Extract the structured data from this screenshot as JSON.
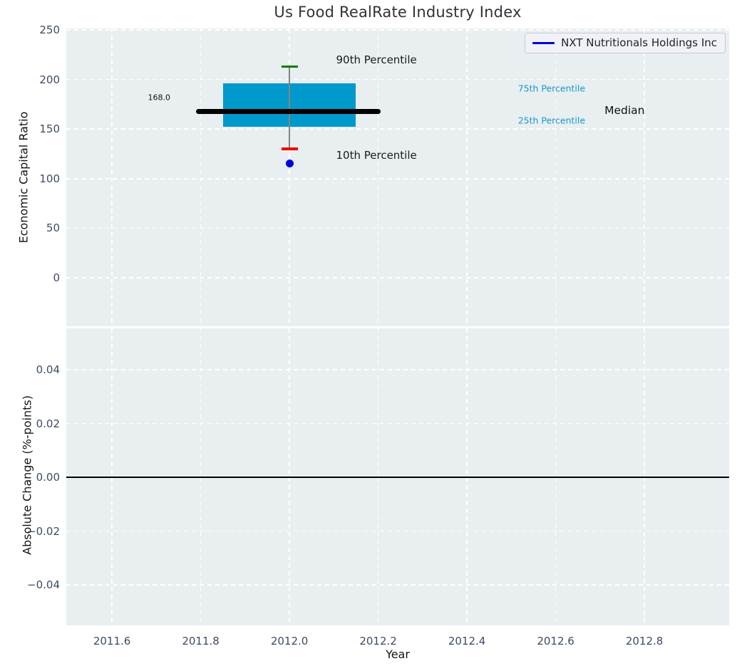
{
  "chart_data": {
    "type": "box",
    "title": "Us Food RealRate Industry Index",
    "xlabel": "Year",
    "x": {
      "lim": [
        2011.497,
        2012.991
      ],
      "ticks": [
        {
          "v": 2011.6,
          "label": "2011.6"
        },
        {
          "v": 2011.8,
          "label": "2011.8"
        },
        {
          "v": 2012.0,
          "label": "2012.0"
        },
        {
          "v": 2012.2,
          "label": "2012.2"
        },
        {
          "v": 2012.4,
          "label": "2012.4"
        },
        {
          "v": 2012.6,
          "label": "2012.6"
        },
        {
          "v": 2012.8,
          "label": "2012.8"
        }
      ]
    },
    "top_panel": {
      "ylabel": "Economic Capital Ratio",
      "ylim": [
        -48.9,
        251.4
      ],
      "grid": "white-dashed",
      "yticks": [
        {
          "v": 0,
          "label": "0"
        },
        {
          "v": 50,
          "label": "50"
        },
        {
          "v": 100,
          "label": "100"
        },
        {
          "v": 150,
          "label": "150"
        },
        {
          "v": 200,
          "label": "200"
        },
        {
          "v": 250,
          "label": "250"
        }
      ],
      "industry_box": {
        "year": 2012.0,
        "box_left": 2011.85,
        "box_right": 2012.15,
        "median_bar_left": 2011.79,
        "median_bar_right": 2012.205,
        "p10": 130,
        "p25": 152,
        "median": 168,
        "p75": 196,
        "p90": 213,
        "median_value_label": "168.0"
      },
      "company_point": {
        "year": 2012.0,
        "value": 115
      },
      "annotations": [
        {
          "name": "annotation-90th-percentile",
          "text": "90th Percentile",
          "x": 2012.105,
          "y": 220.0,
          "size": 15,
          "color": "#1a1a1a"
        },
        {
          "name": "annotation-10th-percentile",
          "text": "10th Percentile",
          "x": 2012.105,
          "y": 123.5,
          "size": 15,
          "color": "#1a1a1a"
        },
        {
          "name": "annotation-75th-percentile",
          "text": "75th Percentile",
          "x": 2012.515,
          "y": 191.0,
          "size": 12.5,
          "color": "#1899cb"
        },
        {
          "name": "annotation-25th-percentile",
          "text": "25th Percentile",
          "x": 2012.515,
          "y": 158.5,
          "size": 12.5,
          "color": "#1899cb"
        },
        {
          "name": "annotation-median",
          "text": "Median",
          "x": 2012.71,
          "y": 169.0,
          "size": 15.5,
          "color": "#111111"
        },
        {
          "name": "annotation-median-value",
          "text": "168.0",
          "x": 2011.681,
          "y": 182.0,
          "size": 11,
          "color": "#111111"
        }
      ]
    },
    "bottom_panel": {
      "ylabel": "Absolute Change (%-points)",
      "ylim": [
        -0.0551,
        0.0554
      ],
      "grid": "white-dashed",
      "zero_line_y": 0.0,
      "yticks": [
        {
          "v": 0.04,
          "label": "0.04"
        },
        {
          "v": 0.02,
          "label": "0.02"
        },
        {
          "v": 0.0,
          "label": "0.00"
        },
        {
          "v": -0.02,
          "label": "−0.02"
        },
        {
          "v": -0.04,
          "label": "−0.04"
        }
      ]
    },
    "legend": {
      "label": "NXT Nutritionals Holdings Inc",
      "position": "upper right"
    },
    "colors": {
      "axes_background": "#e9eef0",
      "grid": "#ffffff",
      "box_fill": "#0099cb",
      "median_line": "#000000",
      "whisker": "#858585",
      "p90_cap": "#007d00",
      "p10_cap": "#ee0000",
      "company_marker": "#0000e0",
      "legend_line": "#0000e0",
      "percentile_label": "#1899cb",
      "tick_label": "#3d4b63",
      "zero_line": "#000000"
    }
  }
}
